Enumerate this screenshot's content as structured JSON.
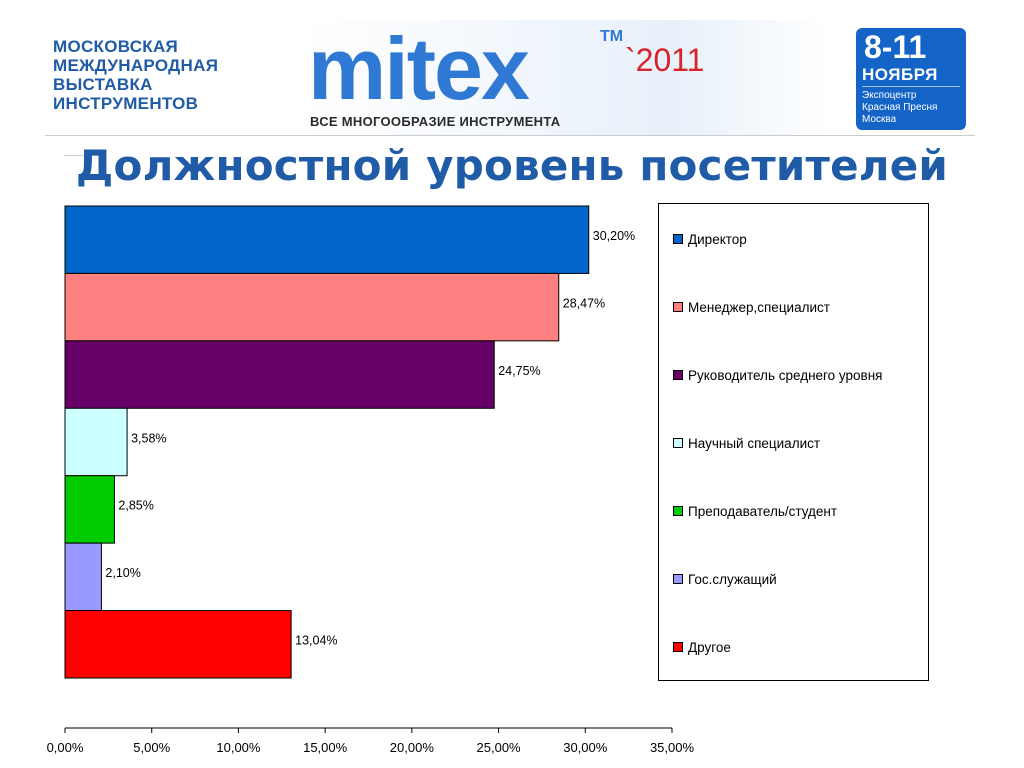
{
  "header": {
    "org_lines": [
      "МОСКОВСКАЯ",
      "МЕЖДУНАРОДНАЯ",
      "ВЫСТАВКА",
      "ИНСТРУМЕНТОВ"
    ],
    "logo_text": "mitex",
    "logo_tm": "TM",
    "logo_year": "`2011",
    "tagline": "ВСЕ МНОГООБРАЗИЕ ИНСТРУМЕНТА",
    "date_range": "8-11",
    "date_month": "НОЯБРЯ",
    "venue_lines": [
      "Экспоцентр",
      "Красная Пресня",
      "Москва"
    ]
  },
  "colors": {
    "brand_blue": "#1f5ba6",
    "logo_blue": "#2f78d4",
    "logo_red": "#d8232a",
    "date_box": "#1464c8"
  },
  "chart_data": {
    "type": "bar",
    "orientation": "horizontal",
    "title": "Должностной уровень посетителей",
    "categories": [
      "Директор",
      "Менеджер,специалист",
      "Руководитель среднего уровня",
      "Научный специалист",
      "Преподаватель/студент",
      "Гос.служащий",
      "Другое"
    ],
    "values": [
      30.2,
      28.47,
      24.75,
      3.58,
      2.85,
      2.1,
      13.04
    ],
    "value_labels": [
      "30,20%",
      "28,47%",
      "24,75%",
      "3,58%",
      "2,85%",
      "2,10%",
      "13,04%"
    ],
    "colors": [
      "#0066cc",
      "#ff8080",
      "#660066",
      "#ccffff",
      "#00cc00",
      "#9999ff",
      "#ff0000"
    ],
    "xlim": [
      0,
      35
    ],
    "x_ticks": [
      0,
      5,
      10,
      15,
      20,
      25,
      30,
      35
    ],
    "x_tick_labels": [
      "0,00%",
      "5,00%",
      "10,00%",
      "15,00%",
      "20,00%",
      "25,00%",
      "30,00%",
      "35,00%"
    ],
    "xlabel": "",
    "ylabel": "",
    "grid": false,
    "legend_position": "right"
  }
}
